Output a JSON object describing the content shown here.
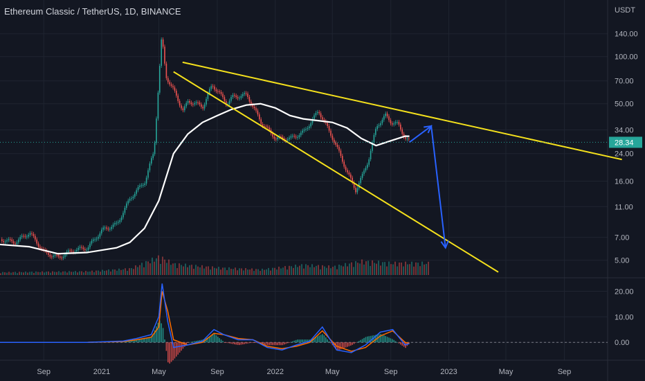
{
  "header": {
    "symbol_title": "Ethereum Classic / TetherUS, 1D, BINANCE"
  },
  "price_axis": {
    "unit": "USDT",
    "ticks": [
      "140.00",
      "100.00",
      "70.00",
      "50.00",
      "34.00",
      "24.00",
      "16.00",
      "11.00",
      "7.00",
      "5.00"
    ]
  },
  "current_price": {
    "label": "28.34",
    "value": 28.34,
    "color": "#26a69a"
  },
  "oscillator_axis": {
    "ticks": [
      "20.00",
      "10.00",
      "0.00"
    ]
  },
  "time_axis": {
    "ticks": [
      "Sep",
      "2021",
      "May",
      "Sep",
      "2022",
      "May",
      "Sep",
      "2023",
      "May",
      "Sep"
    ]
  },
  "colors": {
    "background": "#131722",
    "grid": "#1f2430",
    "up": "#26a69a",
    "down": "#ef5350",
    "moving_average": "#ffffff",
    "trendline": "#f5e11c",
    "projection_arrow": "#2962ff",
    "macd": "#2962ff",
    "signal": "#ff6d00"
  },
  "chart_data": {
    "type": "line",
    "title": "Ethereum Classic / TetherUS, 1D, BINANCE",
    "ylabel": "USDT",
    "y_scale": "log",
    "ylim": [
      3.9,
      230
    ],
    "x_ticks": [
      "Sep",
      "2021",
      "May",
      "Sep",
      "2022",
      "May",
      "Sep",
      "2023",
      "May",
      "Sep"
    ],
    "series": [
      {
        "kind": "price",
        "x": [
          "2020-06-01",
          "2020-07-01",
          "2020-08-01",
          "2020-09-01",
          "2020-10-01",
          "2020-11-01",
          "2020-12-01",
          "2021-01-01",
          "2021-02-01",
          "2021-03-01",
          "2021-04-01",
          "2021-04-20",
          "2021-05-06",
          "2021-05-15",
          "2021-06-01",
          "2021-06-20",
          "2021-07-01",
          "2021-08-01",
          "2021-08-20",
          "2021-09-01",
          "2021-09-20",
          "2021-10-01",
          "2021-11-01",
          "2021-12-01",
          "2022-01-01",
          "2022-02-01",
          "2022-03-01",
          "2022-04-01",
          "2022-05-01",
          "2022-05-15",
          "2022-06-01",
          "2022-06-18",
          "2022-07-01",
          "2022-07-15",
          "2022-08-01",
          "2022-08-20",
          "2022-09-01",
          "2022-09-15",
          "2022-10-01",
          "2022-10-10"
        ],
        "y": [
          6.8,
          6.5,
          7.5,
          5.6,
          5.2,
          5.8,
          6.0,
          7.8,
          8.5,
          12.5,
          16,
          25,
          135,
          75,
          60,
          45,
          52,
          48,
          66,
          60,
          50,
          55,
          57,
          38,
          30,
          30,
          33,
          45,
          30,
          24,
          18,
          14,
          17,
          22,
          36,
          42,
          38,
          37,
          30,
          28.34
        ]
      },
      {
        "kind": "moving_average",
        "x": [
          "2020-06-01",
          "2020-08-01",
          "2020-10-01",
          "2020-12-01",
          "2021-02-01",
          "2021-03-01",
          "2021-04-01",
          "2021-05-01",
          "2021-06-01",
          "2021-07-01",
          "2021-08-01",
          "2021-09-01",
          "2021-10-01",
          "2021-11-01",
          "2021-12-01",
          "2022-01-01",
          "2022-02-01",
          "2022-03-01",
          "2022-04-01",
          "2022-05-01",
          "2022-06-01",
          "2022-07-01",
          "2022-08-01",
          "2022-09-01",
          "2022-10-01",
          "2022-10-10"
        ],
        "y": [
          6.3,
          6.1,
          5.5,
          5.6,
          6.0,
          6.5,
          8,
          12,
          24,
          32,
          38,
          42,
          46,
          49,
          50,
          47,
          42,
          40,
          39,
          38,
          35,
          30,
          27,
          29,
          31,
          31
        ]
      },
      {
        "kind": "trendline_upper",
        "x": [
          "2021-06-20",
          "2023-12-31"
        ],
        "y": [
          92,
          22
        ]
      },
      {
        "kind": "trendline_lower",
        "x": [
          "2021-06-01",
          "2023-04-15"
        ],
        "y": [
          80,
          4.2
        ]
      },
      {
        "kind": "projection_arrow",
        "x": [
          "2022-10-10",
          "2022-11-25",
          "2022-12-25"
        ],
        "y": [
          28.34,
          36,
          6
        ]
      }
    ],
    "volume": {
      "x": [
        "2020-06",
        "2020-09",
        "2020-12",
        "2021-03",
        "2021-05",
        "2021-06",
        "2021-09",
        "2021-12",
        "2022-03",
        "2022-05",
        "2022-07",
        "2022-09"
      ],
      "values": [
        0.15,
        0.18,
        0.2,
        0.35,
        1.0,
        0.6,
        0.4,
        0.3,
        0.55,
        0.45,
        0.75,
        0.65
      ]
    },
    "oscillator": {
      "type": "line",
      "ylim": [
        -7,
        25
      ],
      "x": [
        "2020-06-01",
        "2020-12-01",
        "2021-02-15",
        "2021-03-15",
        "2021-04-15",
        "2021-05-01",
        "2021-05-08",
        "2021-05-20",
        "2021-06-01",
        "2021-07-01",
        "2021-08-01",
        "2021-08-25",
        "2021-09-15",
        "2021-10-15",
        "2021-11-15",
        "2021-12-15",
        "2022-01-15",
        "2022-02-15",
        "2022-03-15",
        "2022-04-10",
        "2022-05-10",
        "2022-06-10",
        "2022-07-10",
        "2022-08-10",
        "2022-09-05",
        "2022-10-01",
        "2022-10-10"
      ],
      "series": [
        {
          "kind": "macd",
          "values": [
            0,
            0,
            0.5,
            1.5,
            3,
            10,
            23,
            8,
            -2,
            -1,
            0.5,
            5,
            3,
            1,
            1,
            -2,
            -3,
            -1,
            0.5,
            6,
            -3,
            -4,
            -1,
            4,
            5,
            -1,
            -0.5
          ]
        },
        {
          "kind": "signal",
          "values": [
            0,
            0,
            0.3,
            1,
            2,
            6,
            20,
            12,
            1,
            -1,
            0,
            3.5,
            3,
            1.5,
            1,
            -1.5,
            -2.5,
            -1.5,
            0,
            4.5,
            -1.5,
            -3.5,
            -2,
            2.5,
            4.5,
            0,
            -0.5
          ]
        }
      ]
    }
  }
}
